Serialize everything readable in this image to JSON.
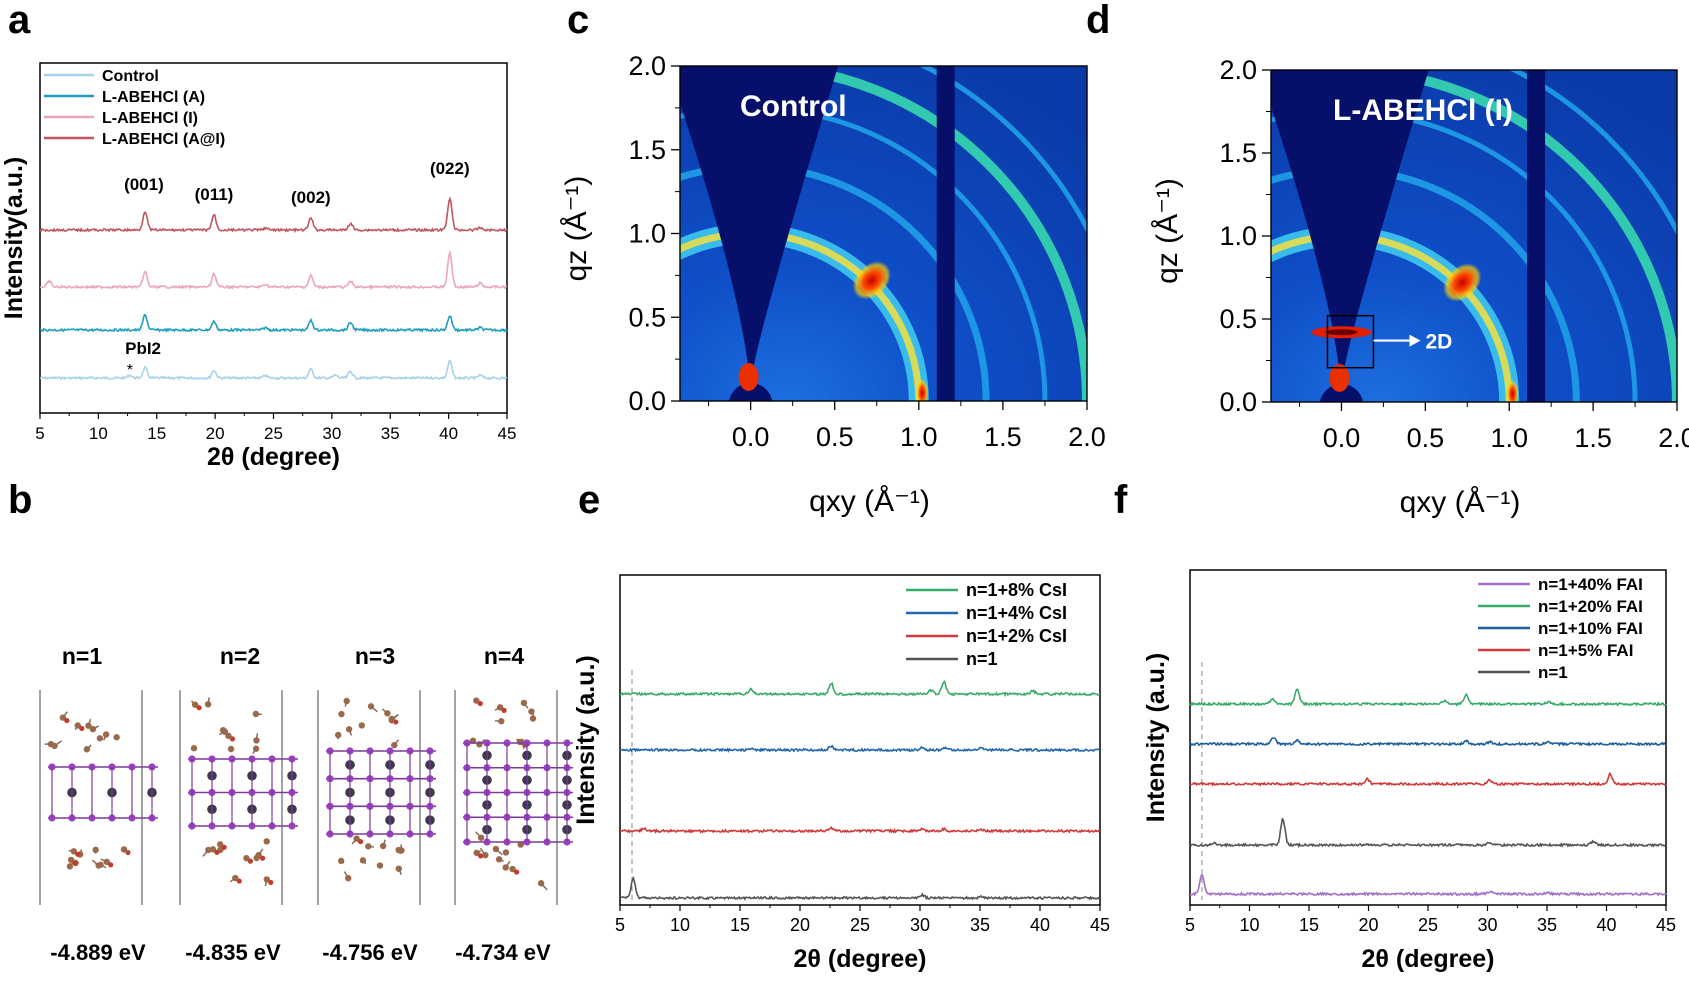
{
  "panels": {
    "a": {
      "letter": "a",
      "chart_data": {
        "type": "line",
        "xlabel": "2θ (degree)",
        "ylabel": "Intensity(a.u.)",
        "xlim": [
          5,
          45
        ],
        "xticks": [
          "5",
          "10",
          "15",
          "20",
          "25",
          "30",
          "35",
          "40",
          "45"
        ],
        "legend_position": "top-left",
        "series": [
          {
            "name": "Control",
            "color": "#a9d2e8",
            "peaks": [
              [
                12.7,
                0.15
              ],
              [
                14.0,
                0.55
              ],
              [
                19.9,
                0.4
              ],
              [
                24.3,
                0.12
              ],
              [
                28.2,
                0.45
              ],
              [
                30.3,
                0.15
              ],
              [
                31.6,
                0.35
              ],
              [
                40.1,
                0.9
              ],
              [
                42.7,
                0.15
              ]
            ]
          },
          {
            "name": "L-ABEHCl (A)",
            "color": "#1e9ec0",
            "peaks": [
              [
                14.0,
                0.8
              ],
              [
                19.9,
                0.45
              ],
              [
                24.3,
                0.12
              ],
              [
                28.2,
                0.5
              ],
              [
                31.6,
                0.4
              ],
              [
                40.1,
                0.75
              ],
              [
                42.7,
                0.12
              ]
            ]
          },
          {
            "name": "L-ABEHCl (I)",
            "color": "#e8a7bf",
            "peaks": [
              [
                5.8,
                0.3
              ],
              [
                14.0,
                0.8
              ],
              [
                19.9,
                0.7
              ],
              [
                24.3,
                0.15
              ],
              [
                28.2,
                0.6
              ],
              [
                31.6,
                0.3
              ],
              [
                40.1,
                1.8
              ],
              [
                42.7,
                0.2
              ]
            ]
          },
          {
            "name": "L-ABEHCl (A@I)",
            "color": "#bf5660",
            "peaks": [
              [
                14.0,
                1.0
              ],
              [
                19.9,
                0.8
              ],
              [
                24.3,
                0.1
              ],
              [
                28.2,
                0.65
              ],
              [
                31.6,
                0.35
              ],
              [
                40.1,
                1.7
              ],
              [
                42.7,
                0.12
              ]
            ]
          }
        ],
        "annotations": [
          {
            "text": "(001)",
            "x": 13.9
          },
          {
            "text": "(011)",
            "x": 19.9
          },
          {
            "text": "(002)",
            "x": 28.2
          },
          {
            "text": "(022)",
            "x": 40.1
          },
          {
            "text": "PbI2",
            "x": 14.0
          },
          {
            "text": "*",
            "x": 12.7
          }
        ]
      }
    },
    "b": {
      "letter": "b",
      "structures": [
        {
          "label": "n=1",
          "energy": "-4.889 eV",
          "layers": 1
        },
        {
          "label": "n=2",
          "energy": "-4.835 eV",
          "layers": 2
        },
        {
          "label": "n=3",
          "energy": "-4.756 eV",
          "layers": 3
        },
        {
          "label": "n=4",
          "energy": "-4.734 eV",
          "layers": 4
        }
      ]
    },
    "c": {
      "letter": "c",
      "chart_data": {
        "type": "heatmap",
        "title": "Control",
        "xlabel": "qxy (Å⁻¹)",
        "ylabel": "qz (Å⁻¹)",
        "xlim": [
          -0.42,
          2.0
        ],
        "ylim": [
          0.0,
          2.0
        ],
        "xticks": [
          "0.0",
          "0.5",
          "1.0",
          "1.5",
          "2.0"
        ],
        "yticks": [
          "0.0",
          "0.5",
          "1.0",
          "1.5",
          "2.0"
        ],
        "rings": [
          1.0,
          1.4,
          1.75,
          2.0,
          2.25
        ],
        "hotspot": {
          "qxy": 0.72,
          "qz": 0.72
        }
      }
    },
    "d": {
      "letter": "d",
      "chart_data": {
        "type": "heatmap",
        "title": "L-ABEHCl (I)",
        "xlabel": "qxy (Å⁻¹)",
        "ylabel": "qz (Å⁻¹)",
        "xlim": [
          -0.42,
          2.0
        ],
        "ylim": [
          0.0,
          2.0
        ],
        "xticks": [
          "0.0",
          "0.5",
          "1.0",
          "1.5",
          "2.0"
        ],
        "yticks": [
          "0.0",
          "0.5",
          "1.0",
          "1.5",
          "2.0"
        ],
        "rings": [
          1.0,
          1.4,
          1.75,
          2.0,
          2.25
        ],
        "hotspot": {
          "qxy": 0.72,
          "qz": 0.72
        },
        "annotation": "2D"
      }
    },
    "e": {
      "letter": "e",
      "chart_data": {
        "type": "line",
        "xlabel": "2θ (degree)",
        "ylabel": "Intensity (a.u.)",
        "xlim": [
          5,
          45
        ],
        "xticks": [
          "5",
          "10",
          "15",
          "20",
          "25",
          "30",
          "35",
          "40",
          "45"
        ],
        "dashed_x": 6.0,
        "legend_position": "top-right",
        "series": [
          {
            "name": "n=1+8% CsI",
            "color": "#3aaa6a",
            "peaks": [
              [
                15.9,
                0.4
              ],
              [
                22.6,
                0.9
              ],
              [
                30.9,
                0.3
              ],
              [
                32.0,
                1.0
              ],
              [
                39.4,
                0.25
              ]
            ]
          },
          {
            "name": "n=1+4% CsI",
            "color": "#2166ac",
            "peaks": [
              [
                15.9,
                0.1
              ],
              [
                22.6,
                0.35
              ],
              [
                30.2,
                0.2
              ],
              [
                32.0,
                0.2
              ],
              [
                35.1,
                0.15
              ]
            ]
          },
          {
            "name": "n=1+2% CsI",
            "color": "#d03a3a",
            "peaks": [
              [
                7.0,
                0.2
              ],
              [
                22.6,
                0.25
              ],
              [
                30.2,
                0.15
              ],
              [
                32.0,
                0.15
              ],
              [
                35.1,
                0.1
              ]
            ]
          },
          {
            "name": "n=1",
            "color": "#555555",
            "peaks": [
              [
                6.1,
                1.6
              ],
              [
                30.2,
                0.25
              ],
              [
                35.1,
                0.15
              ]
            ]
          }
        ]
      }
    },
    "f": {
      "letter": "f",
      "chart_data": {
        "type": "line",
        "xlabel": "2θ (degree)",
        "ylabel": "Intensity (a.u.)",
        "xlim": [
          5,
          45
        ],
        "xticks": [
          "5",
          "10",
          "15",
          "20",
          "25",
          "30",
          "35",
          "40",
          "45"
        ],
        "dashed_x": 6.0,
        "legend_position": "top-right",
        "series": [
          {
            "name": "n=1+40% FAI",
            "color": "#a070c8",
            "peaks": [
              [
                6.0,
                1.6
              ],
              [
                30.2,
                0.2
              ],
              [
                35.1,
                0.1
              ]
            ]
          },
          {
            "name": "n=1+20% FAI",
            "color": "#3aaa6a",
            "peaks": [
              [
                11.9,
                0.4
              ],
              [
                14.0,
                1.2
              ],
              [
                26.4,
                0.3
              ],
              [
                28.2,
                0.8
              ],
              [
                35.1,
                0.15
              ]
            ]
          },
          {
            "name": "n=1+10% FAI",
            "color": "#1f5f9a",
            "peaks": [
              [
                12.0,
                0.6
              ],
              [
                14.0,
                0.3
              ],
              [
                28.2,
                0.25
              ],
              [
                30.2,
                0.2
              ],
              [
                35.1,
                0.15
              ]
            ]
          },
          {
            "name": "n=1+5%  FAI",
            "color": "#d03a3a",
            "peaks": [
              [
                19.9,
                0.4
              ],
              [
                30.2,
                0.35
              ],
              [
                40.3,
                0.8
              ]
            ]
          },
          {
            "name": "n=1",
            "color": "#555555",
            "peaks": [
              [
                7.0,
                0.2
              ],
              [
                12.8,
                2.2
              ],
              [
                30.2,
                0.2
              ],
              [
                38.9,
                0.3
              ]
            ]
          }
        ]
      }
    }
  }
}
